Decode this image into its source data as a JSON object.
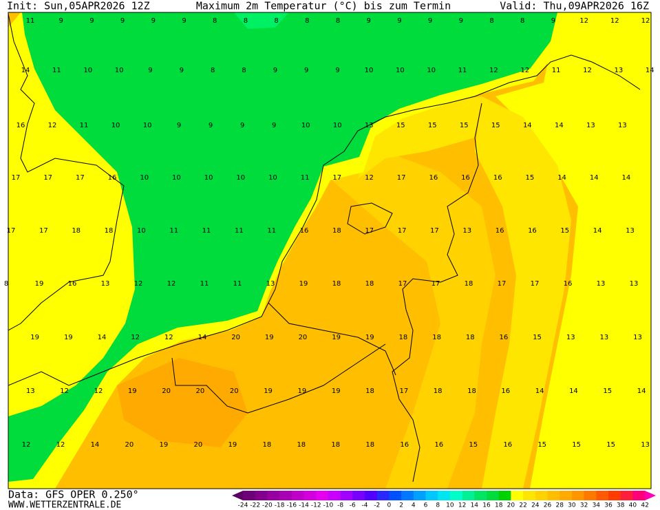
{
  "header": {
    "init": "Init: Sun,05APR2026 12Z",
    "title": "Maximum 2m Temperatur (°C) bis zum Termin",
    "valid": "Valid: Thu,09APR2026 16Z"
  },
  "footer": {
    "source": "Data: GFS OPER 0.250°",
    "website": "WWW.WETTERZENTRALE.DE"
  },
  "grid": {
    "rows": [
      [
        11,
        9,
        9,
        9,
        9,
        9,
        8,
        8,
        8,
        8,
        8,
        9,
        9,
        9,
        9,
        8,
        8,
        9,
        12,
        12,
        12
      ],
      [
        14,
        11,
        10,
        10,
        9,
        9,
        8,
        8,
        9,
        9,
        9,
        10,
        10,
        10,
        11,
        12,
        12,
        11,
        12,
        13,
        14
      ],
      [
        16,
        12,
        11,
        10,
        10,
        9,
        9,
        9,
        9,
        10,
        10,
        13,
        15,
        15,
        15,
        15,
        14,
        14,
        13,
        13
      ],
      [
        17,
        17,
        17,
        16,
        10,
        10,
        10,
        10,
        10,
        11,
        17,
        12,
        17,
        16,
        16,
        16,
        15,
        14,
        14,
        14
      ],
      [
        17,
        17,
        18,
        18,
        10,
        11,
        11,
        11,
        11,
        16,
        18,
        17,
        17,
        17,
        13,
        16,
        16,
        15,
        14,
        13
      ],
      [
        8,
        19,
        16,
        13,
        12,
        12,
        11,
        11,
        13,
        19,
        18,
        18,
        17,
        17,
        18,
        17,
        17,
        16,
        13,
        13
      ],
      [
        19,
        19,
        14,
        12,
        12,
        14,
        20,
        19,
        20,
        19,
        19,
        18,
        18,
        18,
        16,
        15,
        13,
        13,
        13
      ],
      [
        13,
        12,
        12,
        19,
        20,
        20,
        20,
        19,
        19,
        19,
        18,
        17,
        18,
        18,
        16,
        14,
        14,
        15,
        14
      ],
      [
        12,
        12,
        14,
        20,
        19,
        20,
        19,
        18,
        18,
        18,
        18,
        16,
        16,
        15,
        16,
        15,
        15,
        15,
        13
      ]
    ]
  },
  "legend": {
    "ticks": [
      -24,
      -22,
      -20,
      -18,
      -16,
      -14,
      -12,
      -10,
      -8,
      -6,
      -4,
      -2,
      0,
      2,
      4,
      6,
      8,
      10,
      12,
      14,
      16,
      18,
      20,
      22,
      24,
      26,
      28,
      30,
      32,
      34,
      36,
      38,
      40,
      42
    ],
    "colors": [
      "#5a0064",
      "#6e0078",
      "#82008c",
      "#9600a0",
      "#aa00b4",
      "#be00c8",
      "#d200dc",
      "#e600f0",
      "#c800ff",
      "#a000ff",
      "#7800ff",
      "#5000ff",
      "#2828ff",
      "#0050ff",
      "#0078ff",
      "#00a0ff",
      "#00c8ff",
      "#00e6f0",
      "#00ffc8",
      "#00f096",
      "#00e664",
      "#00dc3c",
      "#00d200",
      "#ffff00",
      "#ffe600",
      "#ffd200",
      "#ffbe00",
      "#ffaa00",
      "#ff9600",
      "#ff7800",
      "#ff5a00",
      "#ff3c00",
      "#ff1e3c",
      "#ff0078",
      "#ff00b4"
    ]
  }
}
